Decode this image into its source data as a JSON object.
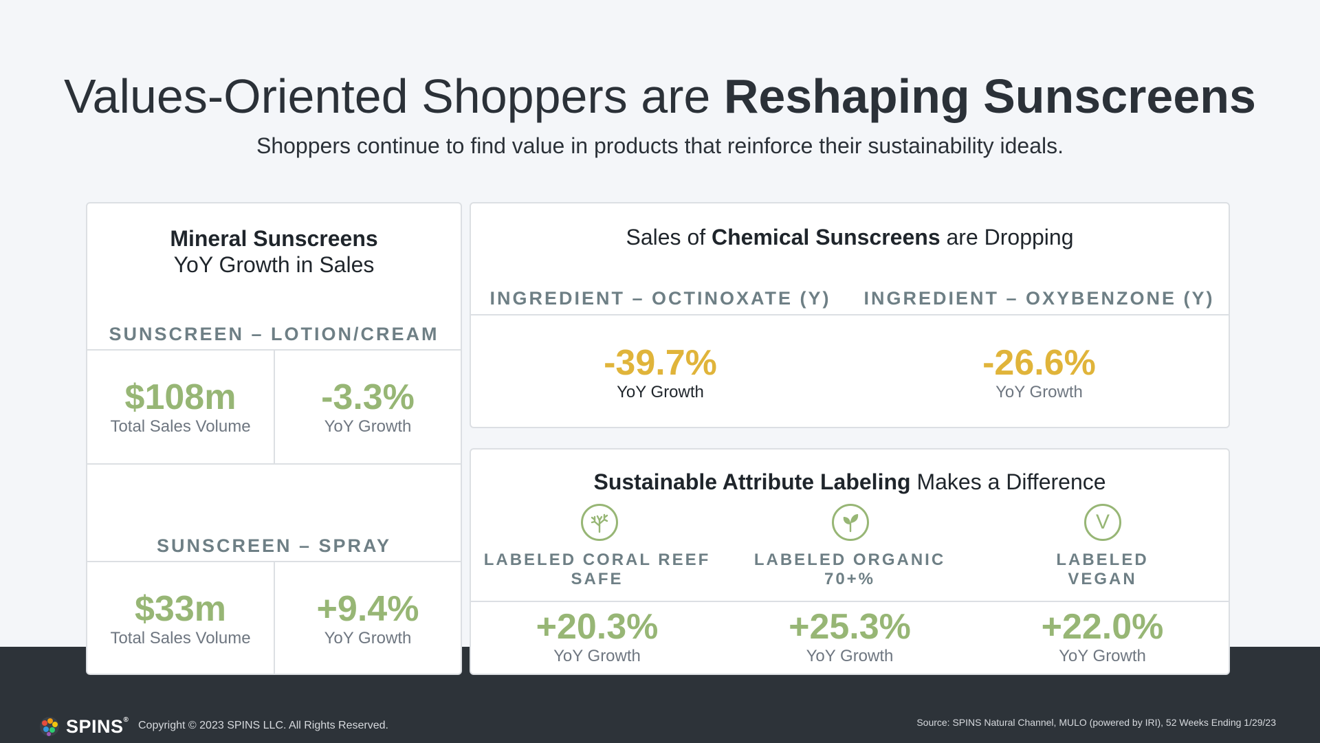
{
  "header": {
    "title_regular": "Values-Oriented Shoppers are ",
    "title_bold": "Reshaping Sunscreens",
    "subtitle": "Shoppers continue to find value in products that reinforce their sustainability ideals."
  },
  "mineral": {
    "title_bold": "Mineral Sunscreens",
    "title_line2": "YoY Growth in Sales",
    "lotion": {
      "label": "SUNSCREEN – LOTION/CREAM",
      "sales_value": "$108m",
      "sales_caption": "Total Sales Volume",
      "growth_value": "-3.3%",
      "growth_caption": "YoY Growth"
    },
    "spray": {
      "label": "SUNSCREEN – SPRAY",
      "sales_value": "$33m",
      "sales_caption": "Total Sales Volume",
      "growth_value": "+9.4%",
      "growth_caption": "YoY Growth"
    }
  },
  "chemical": {
    "title_pre": "Sales of ",
    "title_bold": "Chemical Sunscreens",
    "title_post": " are Dropping",
    "items": [
      {
        "label": "INGREDIENT – OCTINOXATE (Y)",
        "value": "-39.7%",
        "caption": "YoY Growth"
      },
      {
        "label": "INGREDIENT – OXYBENZONE (Y)",
        "value": "-26.6%",
        "caption": "YoY Growth"
      }
    ]
  },
  "sustainable": {
    "title_bold": "Sustainable Attribute Labeling",
    "title_post": " Makes a Difference",
    "items": [
      {
        "icon": "coral-icon",
        "label_line1": "LABELED CORAL REEF",
        "label_line2": "SAFE",
        "value": "+20.3%",
        "caption": "YoY Growth"
      },
      {
        "icon": "leaf-icon",
        "label_line1": "LABELED ORGANIC",
        "label_line2": "70+%",
        "value": "+25.3%",
        "caption": "YoY Growth"
      },
      {
        "icon": "vegan-icon",
        "icon_letter": "V",
        "label_line1": "LABELED",
        "label_line2": "VEGAN",
        "value": "+22.0%",
        "caption": "YoY Growth"
      }
    ]
  },
  "colors": {
    "accent_green": "#97b675",
    "accent_gold": "#e0b43a",
    "dark_band": "#2d3339"
  },
  "footer": {
    "logo_text": "SPINS",
    "logo_mark": "®",
    "copyright": "Copyright © 2023 SPINS LLC. All Rights Reserved.",
    "source": "Source: SPINS Natural Channel, MULO (powered by IRI), 52 Weeks Ending 1/29/23"
  }
}
